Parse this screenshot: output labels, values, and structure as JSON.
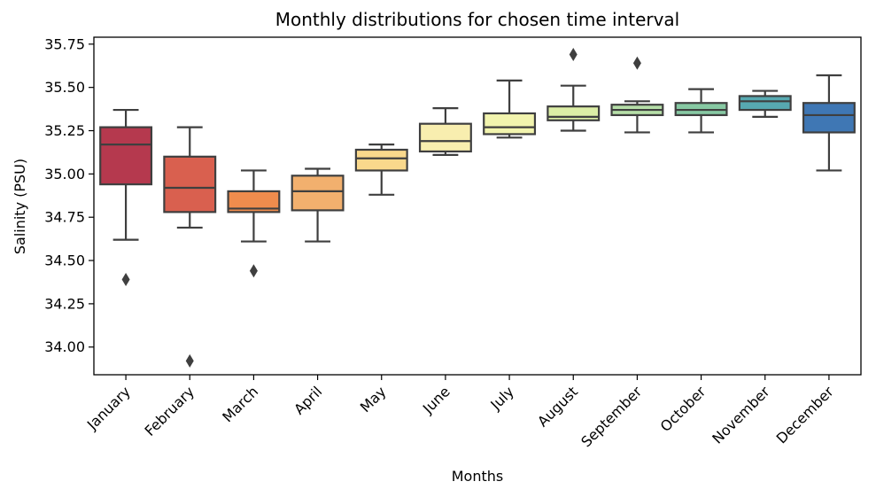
{
  "chart_data": {
    "type": "box",
    "title": "Monthly distributions for chosen time interval",
    "xlabel": "Months",
    "ylabel": "Salinity (PSU)",
    "ylim": [
      33.84,
      35.79
    ],
    "yticks": [
      "34.00",
      "34.25",
      "34.50",
      "34.75",
      "35.00",
      "35.25",
      "35.50",
      "35.75"
    ],
    "grid": false,
    "legend": "none",
    "categories": [
      "January",
      "February",
      "March",
      "April",
      "May",
      "June",
      "July",
      "August",
      "September",
      "October",
      "November",
      "December"
    ],
    "boxes": [
      {
        "category": "January",
        "whisker_low": 34.62,
        "q1": 34.94,
        "median": 35.17,
        "q3": 35.27,
        "whisker_high": 35.37,
        "outliers": [
          34.39
        ],
        "color": "#b5394e"
      },
      {
        "category": "February",
        "whisker_low": 34.69,
        "q1": 34.78,
        "median": 34.92,
        "q3": 35.1,
        "whisker_high": 35.27,
        "outliers": [
          33.92
        ],
        "color": "#d9604f"
      },
      {
        "category": "March",
        "whisker_low": 34.61,
        "q1": 34.78,
        "median": 34.8,
        "q3": 34.9,
        "whisker_high": 35.02,
        "outliers": [
          34.44
        ],
        "color": "#ef8c4d"
      },
      {
        "category": "April",
        "whisker_low": 34.61,
        "q1": 34.79,
        "median": 34.9,
        "q3": 34.99,
        "whisker_high": 35.03,
        "outliers": [],
        "color": "#f2b06e"
      },
      {
        "category": "May",
        "whisker_low": 34.88,
        "q1": 35.02,
        "median": 35.09,
        "q3": 35.14,
        "whisker_high": 35.17,
        "outliers": [],
        "color": "#f9d88c"
      },
      {
        "category": "June",
        "whisker_low": 35.11,
        "q1": 35.13,
        "median": 35.19,
        "q3": 35.29,
        "whisker_high": 35.38,
        "outliers": [],
        "color": "#f8eeaf"
      },
      {
        "category": "July",
        "whisker_low": 35.21,
        "q1": 35.23,
        "median": 35.27,
        "q3": 35.35,
        "whisker_high": 35.54,
        "outliers": [],
        "color": "#f2f4ae"
      },
      {
        "category": "August",
        "whisker_low": 35.25,
        "q1": 35.31,
        "median": 35.33,
        "q3": 35.39,
        "whisker_high": 35.51,
        "outliers": [
          35.69
        ],
        "color": "#dceea6"
      },
      {
        "category": "September",
        "whisker_low": 35.24,
        "q1": 35.34,
        "median": 35.37,
        "q3": 35.4,
        "whisker_high": 35.42,
        "outliers": [
          35.64
        ],
        "color": "#b6dfa8"
      },
      {
        "category": "October",
        "whisker_low": 35.24,
        "q1": 35.34,
        "median": 35.37,
        "q3": 35.41,
        "whisker_high": 35.49,
        "outliers": [],
        "color": "#87c9a3"
      },
      {
        "category": "November",
        "whisker_low": 35.33,
        "q1": 35.37,
        "median": 35.42,
        "q3": 35.45,
        "whisker_high": 35.48,
        "outliers": [],
        "color": "#57a9b1"
      },
      {
        "category": "December",
        "whisker_low": 35.02,
        "q1": 35.24,
        "median": 35.34,
        "q3": 35.41,
        "whisker_high": 35.57,
        "outliers": [],
        "color": "#3f77b4"
      }
    ]
  }
}
